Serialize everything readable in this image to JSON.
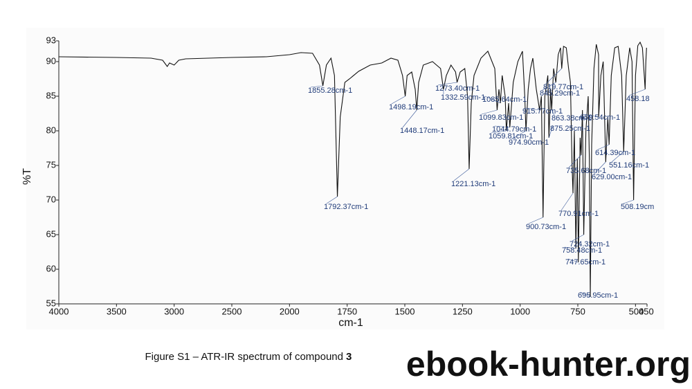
{
  "chart_data": {
    "type": "line",
    "y_label": "%T",
    "x_label": "cm-1",
    "caption": "Figure S1 – ATR-IR spectrum of compound",
    "caption_compound": "3",
    "watermark": "ebook-hunter.org",
    "xlim": [
      4000,
      450
    ],
    "xscale_break": 2000,
    "xticks": [
      4000,
      3500,
      3000,
      2500,
      2000,
      1750,
      1500,
      1250,
      1000,
      750,
      500,
      450
    ],
    "ylim": [
      55,
      93
    ],
    "yticks": [
      55,
      60,
      65,
      70,
      75,
      80,
      85,
      90,
      93
    ],
    "color": "#111111",
    "x": [
      4000,
      3500,
      3200,
      3100,
      3060,
      3040,
      3000,
      2960,
      2900,
      2500,
      2200,
      2000,
      1950,
      1900,
      1870,
      1855.28,
      1840,
      1820,
      1805,
      1792.37,
      1780,
      1760,
      1740,
      1700,
      1650,
      1600,
      1560,
      1530,
      1510,
      1498.19,
      1490,
      1470,
      1455,
      1448.17,
      1440,
      1420,
      1380,
      1345,
      1332.59,
      1320,
      1300,
      1280,
      1273.4,
      1260,
      1240,
      1228,
      1221.13,
      1212,
      1200,
      1170,
      1140,
      1110,
      1099.83,
      1092,
      1085.64,
      1078,
      1065,
      1059.81,
      1050,
      1044.79,
      1030,
      1010,
      990,
      980,
      974.9,
      965,
      955,
      945,
      930,
      915.77,
      908,
      900.73,
      893,
      880,
      875.25,
      868,
      863.38,
      855,
      845.29,
      835,
      825,
      819.77,
      812,
      800,
      790,
      782,
      775,
      770.91,
      765,
      758.48,
      752,
      747.65,
      740,
      735.68,
      730,
      724.32,
      715,
      705,
      700,
      695.95,
      690,
      680,
      670,
      660,
      659.54,
      650,
      640,
      629,
      620,
      614.39,
      605,
      590,
      575,
      560,
      551.16,
      540,
      525,
      515,
      508.19,
      500,
      490,
      480,
      470,
      462,
      458.18,
      455,
      452
    ],
    "values": [
      90.7,
      90.6,
      90.5,
      90.2,
      89.3,
      89.8,
      89.5,
      90.2,
      90.4,
      90.6,
      90.7,
      91.0,
      91.3,
      91.2,
      89.5,
      86.5,
      89.5,
      90.5,
      88,
      70.5,
      82,
      87,
      87.5,
      88.6,
      89.5,
      89.8,
      90.5,
      90.2,
      88,
      85,
      88,
      88.5,
      86,
      83,
      87,
      89.5,
      90,
      89,
      86,
      88,
      89.5,
      88.5,
      87,
      88.5,
      89,
      85,
      74.5,
      84,
      88,
      90.5,
      91.5,
      89,
      83,
      86,
      84,
      88,
      85,
      80,
      84,
      80.5,
      87,
      90,
      91.5,
      85,
      80,
      86,
      89,
      90.5,
      86,
      83,
      85,
      67.5,
      85,
      88,
      79,
      86,
      83,
      89,
      87,
      91,
      92,
      89,
      92.2,
      92,
      89,
      87,
      75,
      71,
      80,
      63,
      76,
      61,
      79,
      76.5,
      83,
      65,
      80,
      85,
      76,
      56,
      78,
      89,
      92.5,
      91,
      82,
      88,
      90,
      75.5,
      82,
      78,
      88,
      92,
      92.2,
      88,
      77,
      88,
      92,
      90,
      70,
      88,
      92.3,
      92.8,
      92,
      88,
      86,
      90,
      92
    ],
    "peaks": [
      {
        "x": 1855.28,
        "y": 86.5,
        "label": "1855.28cm-1"
      },
      {
        "x": 1792.37,
        "y": 70.5,
        "label": "1792.37cm-1"
      },
      {
        "x": 1498.19,
        "y": 85,
        "label": "1498.19cm-1"
      },
      {
        "x": 1448.17,
        "y": 83,
        "label": "1448.17cm-1"
      },
      {
        "x": 1332.59,
        "y": 86,
        "label": "1332.59cm-1"
      },
      {
        "x": 1273.4,
        "y": 87,
        "label": "1273.40cm-1"
      },
      {
        "x": 1221.13,
        "y": 74.5,
        "label": "1221.13cm-1"
      },
      {
        "x": 1099.83,
        "y": 83,
        "label": "1099.83cm-1"
      },
      {
        "x": 1085.64,
        "y": 84,
        "label": "1085.64cm-1"
      },
      {
        "x": 1059.81,
        "y": 80,
        "label": "1059.81cm-1"
      },
      {
        "x": 1044.79,
        "y": 80.5,
        "label": "1044.79cm-1"
      },
      {
        "x": 974.9,
        "y": 80,
        "label": "974.90cm-1"
      },
      {
        "x": 915.77,
        "y": 83,
        "label": "915.77cm-1"
      },
      {
        "x": 900.73,
        "y": 67.5,
        "label": "900.73cm-1"
      },
      {
        "x": 875.25,
        "y": 79,
        "label": "875.25cm-1"
      },
      {
        "x": 863.38,
        "y": 83,
        "label": "863.38cm-1"
      },
      {
        "x": 845.29,
        "y": 87,
        "label": "845.29cm-1"
      },
      {
        "x": 819.77,
        "y": 89,
        "label": "819.77cm-1"
      },
      {
        "x": 770.91,
        "y": 71,
        "label": "770.91cm-1"
      },
      {
        "x": 758.48,
        "y": 63,
        "label": "758.48cm-1"
      },
      {
        "x": 747.65,
        "y": 61,
        "label": "747.65cm-1"
      },
      {
        "x": 735.68,
        "y": 76.5,
        "label": "735.68cm-1"
      },
      {
        "x": 724.32,
        "y": 65,
        "label": "724.32cm-1"
      },
      {
        "x": 695.95,
        "y": 56,
        "label": "695.95cm-1"
      },
      {
        "x": 659.54,
        "y": 82,
        "label": "659.54cm-1"
      },
      {
        "x": 629,
        "y": 75.5,
        "label": "629.00cm-1"
      },
      {
        "x": 614.39,
        "y": 78,
        "label": "614.39cm-1"
      },
      {
        "x": 551.16,
        "y": 77,
        "label": "551.16cm-1"
      },
      {
        "x": 508.19,
        "y": 70,
        "label": "508.19cm"
      },
      {
        "x": 458.18,
        "y": 86,
        "label": "458.18"
      }
    ]
  }
}
